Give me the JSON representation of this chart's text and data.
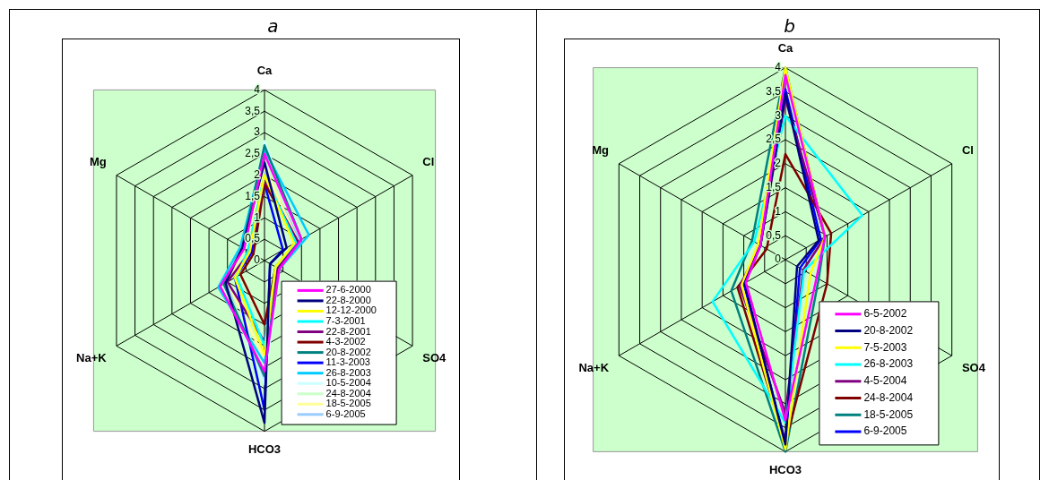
{
  "chart_data": [
    {
      "type": "radar",
      "title": "a",
      "categories": [
        "Ca",
        "Cl",
        "SO4",
        "HCO3",
        "Na+K",
        "Mg"
      ],
      "ylim": [
        0,
        4
      ],
      "yticks": [
        0,
        {
          "value": 0.5,
          "label": "0,5"
        },
        1,
        {
          "value": 1.5,
          "label": "1,5"
        },
        2,
        {
          "value": 2.5,
          "label": "2,5"
        },
        3,
        {
          "value": 3.5,
          "label": "3,5"
        },
        4
      ],
      "grid": true,
      "legend": "bottom right",
      "marker": "none",
      "series": [
        {
          "name": "27-6-2000",
          "color": "#ff00ff",
          "values": [
            2.5,
            1.0,
            0.4,
            2.6,
            1.2,
            0.55
          ]
        },
        {
          "name": "22-8-2000",
          "color": "#000080",
          "values": [
            2.3,
            0.6,
            0.15,
            3.8,
            1.05,
            0.6
          ]
        },
        {
          "name": "12-12-2000",
          "color": "#ffff00",
          "values": [
            2.0,
            0.8,
            0.3,
            2.2,
            0.8,
            0.4
          ]
        },
        {
          "name": "7-3-2001",
          "color": "#00ffff",
          "values": [
            2.0,
            0.85,
            0.3,
            2.0,
            0.75,
            0.45
          ]
        },
        {
          "name": "22-8-2001",
          "color": "#800080",
          "values": [
            1.9,
            0.9,
            0.35,
            1.9,
            1.0,
            0.4
          ]
        },
        {
          "name": "4-3-2002",
          "color": "#800000",
          "values": [
            1.8,
            0.9,
            0.3,
            1.5,
            0.65,
            0.3
          ]
        },
        {
          "name": "20-8-2002",
          "color": "#008080",
          "values": [
            2.7,
            1.0,
            0.35,
            2.7,
            1.1,
            0.6
          ]
        },
        {
          "name": "11-3-2003",
          "color": "#0000ff",
          "values": [
            1.8,
            0.5,
            0.15,
            3.5,
            0.8,
            0.35
          ]
        },
        {
          "name": "26-8-2003",
          "color": "#00ccff",
          "values": [
            2.6,
            1.2,
            0.4,
            2.4,
            1.25,
            0.65
          ]
        },
        {
          "name": "10-5-2004",
          "color": "#ccffff",
          "values": [
            2.8,
            1.0,
            0.4,
            2.9,
            1.1,
            0.6
          ]
        },
        {
          "name": "24-8-2004",
          "color": "#ccffcc",
          "values": [
            2.6,
            1.0,
            0.4,
            2.5,
            1.1,
            0.6
          ]
        },
        {
          "name": "18-5-2005",
          "color": "#ffff99",
          "values": [
            2.2,
            0.9,
            0.35,
            2.3,
            1.0,
            0.55
          ]
        },
        {
          "name": "6-9-2005",
          "color": "#99ccff",
          "values": [
            2.1,
            0.95,
            0.35,
            2.8,
            1.05,
            0.6
          ]
        }
      ]
    },
    {
      "type": "radar",
      "title": "b",
      "categories": [
        "Ca",
        "Cl",
        "SO4",
        "HCO3",
        "Na+K",
        "Mg"
      ],
      "ylim": [
        0,
        4
      ],
      "yticks": [
        0,
        {
          "value": 0.5,
          "label": "0,5"
        },
        1,
        {
          "value": 1.5,
          "label": "1,5"
        },
        2,
        {
          "value": 2.5,
          "label": "2,5"
        },
        3,
        {
          "value": 3.5,
          "label": "3,5"
        },
        4
      ],
      "grid": true,
      "legend": "bottom right",
      "marker": "none",
      "series": [
        {
          "name": "6-5-2002",
          "color": "#ff00ff",
          "values": [
            3.85,
            0.95,
            0.75,
            3.35,
            0.95,
            0.6
          ]
        },
        {
          "name": "20-8-2002",
          "color": "#000080",
          "values": [
            3.45,
            0.8,
            0.28,
            3.85,
            0.98,
            0.6
          ]
        },
        {
          "name": "7-5-2003",
          "color": "#ffff00",
          "values": [
            4.0,
            0.95,
            0.6,
            3.95,
            1.05,
            0.65
          ]
        },
        {
          "name": "26-8-2003",
          "color": "#00ffff",
          "values": [
            3.0,
            1.85,
            0.45,
            3.4,
            1.75,
            0.75
          ]
        },
        {
          "name": "4-5-2004",
          "color": "#800080",
          "values": [
            3.35,
            0.95,
            0.43,
            3.2,
            1.1,
            0.6
          ]
        },
        {
          "name": "24-8-2004",
          "color": "#800000",
          "values": [
            2.2,
            1.1,
            1.0,
            3.8,
            1.15,
            0.45
          ]
        },
        {
          "name": "18-5-2005",
          "color": "#008080",
          "values": [
            4.0,
            0.95,
            0.8,
            4.0,
            1.3,
            0.8
          ]
        },
        {
          "name": "6-9-2005",
          "color": "#0000ff",
          "values": [
            3.55,
            0.85,
            0.35,
            3.8,
            1.0,
            0.6
          ]
        }
      ]
    }
  ]
}
